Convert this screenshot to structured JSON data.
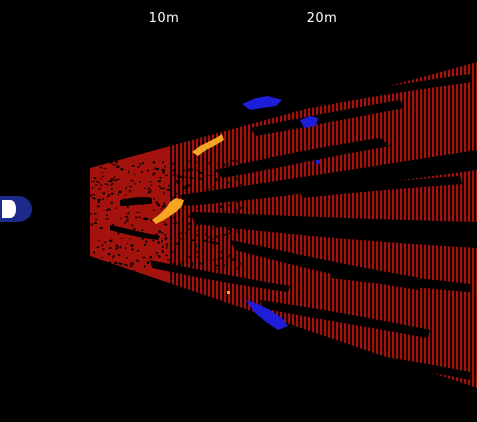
{
  "range_labels": {
    "near": "10m",
    "far": "20m"
  },
  "colors": {
    "background": "#000000",
    "sweep_red": "#a3120c",
    "sweep_red_dark": "#7a0d08",
    "target_yellow": "#f5a623",
    "target_blue": "#1e1ed8",
    "vessel_navy": "#1c2a8a",
    "label_text": "#ffffff"
  },
  "icons": {
    "vessel": "sonar-vessel-icon"
  }
}
